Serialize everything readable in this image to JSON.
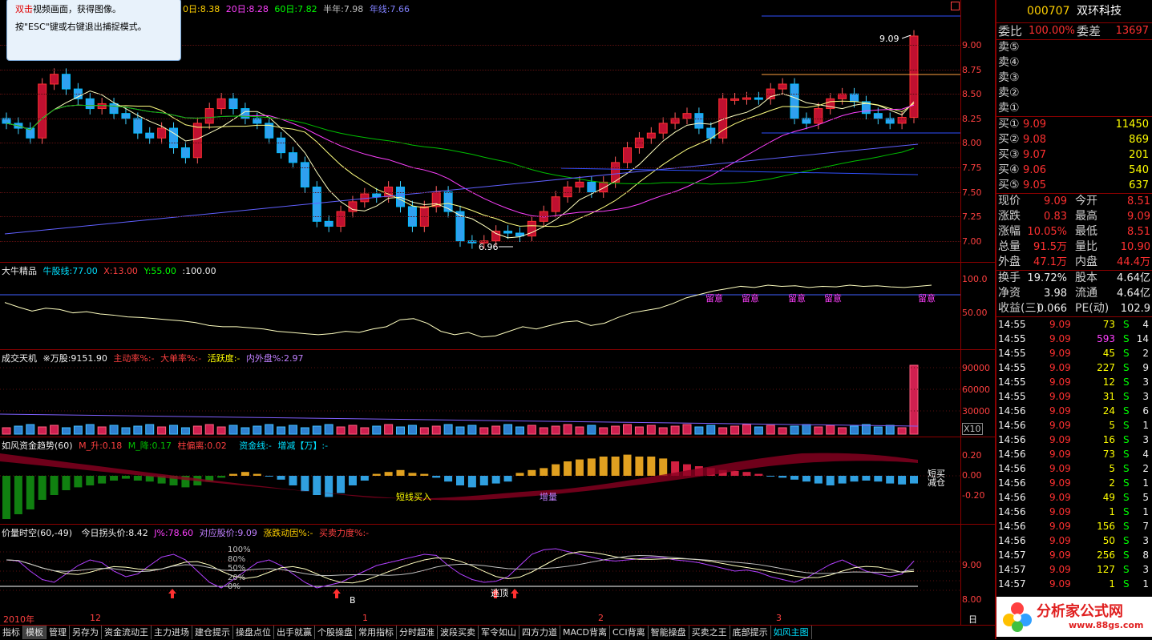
{
  "tooltip": {
    "line1_red": "双击",
    "line1_rest": "视频画面，获得图像。",
    "line2": "按\"ESC\"键或右键退出捕捉模式。"
  },
  "main_title": {
    "ma10": "0日:8.38",
    "ma20_label": "20日:8.28",
    "ma60_label": "60日:7.82",
    "half_year": "半年:7.98",
    "year": "年线:7.66",
    "prefix": "双"
  },
  "price_axis": [
    "9.00",
    "8.75",
    "8.50",
    "8.25",
    "8.00",
    "7.75",
    "7.50",
    "7.25",
    "7.00"
  ],
  "annotations": {
    "high": "9.09",
    "low": "6.96"
  },
  "pane1": {
    "title": "大牛精品",
    "f1": "牛股线:77.00",
    "f2": "X:13.00",
    "f3": "Y:55.00",
    "f4": ":100.00",
    "axis": [
      "100.0",
      "50.00"
    ],
    "marks": [
      "留意",
      "留意",
      "留意",
      "留意",
      "留意"
    ]
  },
  "pane2": {
    "title": "成交天机",
    "f1": "※万股:9151.90",
    "f2": "主动率%:-",
    "f3": "大单率%:-",
    "f4": "活跃度:-",
    "f5": "内外盘%:2.97",
    "axis": [
      "90000",
      "60000",
      "30000"
    ],
    "unit": "X10"
  },
  "pane3": {
    "title": "如风资金趋势(60)",
    "f1": "M_升:0.18",
    "f2": "M_降:0.17",
    "f3": "柱偏离:0.02",
    "f4": "资金线:-",
    "f5": "增减【万】:-",
    "axis": [
      "0.20",
      "0.00",
      "-0.20"
    ],
    "labels": [
      "短线买入",
      "增量"
    ],
    "sidebar": [
      "短买",
      "减仓"
    ]
  },
  "pane4": {
    "title": "价量时空(60,-49)",
    "f1": "今日拐头价:8.42",
    "f2": "J%:78.60",
    "f3": "对应股价:9.09",
    "f4": "涨跌动因%:-",
    "f5": "买卖力度%:-",
    "axis": [
      "9.00",
      "8.00"
    ],
    "levels": [
      "100%",
      "80%",
      "50%",
      "20%",
      "0%"
    ],
    "marks": [
      "B",
      "逃顶"
    ]
  },
  "xaxis": {
    "labels": [
      "2010年",
      "12",
      "1",
      "2",
      "3"
    ],
    "period": "日线"
  },
  "tabs": [
    "指标",
    "模板",
    "管理",
    "另存为",
    "资金流动王",
    "主力进场",
    "建仓提示",
    "操盘点位",
    "出手就赢",
    "个股操盘",
    "常用指标",
    "分时超准",
    "波段买卖",
    "军令如山",
    "四方力道",
    "MACD背离",
    "CCI背离",
    "智能操盘",
    "买卖之王",
    "底部提示",
    "如风主图"
  ],
  "stock": {
    "code": "000707",
    "name": "双环科技"
  },
  "order": {
    "wb_label": "委比",
    "wb": "100.00%",
    "wc_label": "委差",
    "wc": "13697"
  },
  "sell": [
    {
      "label": "卖⑤"
    },
    {
      "label": "卖④"
    },
    {
      "label": "卖③"
    },
    {
      "label": "卖②"
    },
    {
      "label": "卖①"
    }
  ],
  "buy": [
    {
      "label": "买①",
      "price": "9.09",
      "vol": "11450"
    },
    {
      "label": "买②",
      "price": "9.08",
      "vol": "869"
    },
    {
      "label": "买③",
      "price": "9.07",
      "vol": "201"
    },
    {
      "label": "买④",
      "price": "9.06",
      "vol": "540"
    },
    {
      "label": "买⑤",
      "price": "9.05",
      "vol": "637"
    }
  ],
  "quote": [
    {
      "l1": "现价",
      "v1": "9.09",
      "l2": "今开",
      "v2": "8.51"
    },
    {
      "l1": "涨跌",
      "v1": "0.83",
      "l2": "最高",
      "v2": "9.09"
    },
    {
      "l1": "涨幅",
      "v1": "10.05%",
      "l2": "最低",
      "v2": "8.51"
    },
    {
      "l1": "总量",
      "v1": "91.5万",
      "l2": "量比",
      "v2": "10.90"
    },
    {
      "l1": "外盘",
      "v1": "47.1万",
      "l2": "内盘",
      "v2": "44.4万"
    }
  ],
  "extra": [
    {
      "l1": "换手",
      "v1": "19.72%",
      "l2": "股本",
      "v2": "4.64亿"
    },
    {
      "l1": "净资",
      "v1": "3.98",
      "l2": "流通",
      "v2": "4.64亿"
    },
    {
      "l1": "收益(三)",
      "v1": "0.066",
      "l2": "PE(动)",
      "v2": "102.9"
    }
  ],
  "ticks": [
    {
      "t": "14:55",
      "p": "9.09",
      "v": "73",
      "s": "S",
      "n": "4"
    },
    {
      "t": "14:55",
      "p": "9.09",
      "v": "593",
      "s": "S",
      "n": "14"
    },
    {
      "t": "14:55",
      "p": "9.09",
      "v": "45",
      "s": "S",
      "n": "2"
    },
    {
      "t": "14:55",
      "p": "9.09",
      "v": "227",
      "s": "S",
      "n": "9"
    },
    {
      "t": "14:55",
      "p": "9.09",
      "v": "12",
      "s": "S",
      "n": "3"
    },
    {
      "t": "14:55",
      "p": "9.09",
      "v": "31",
      "s": "S",
      "n": "3"
    },
    {
      "t": "14:56",
      "p": "9.09",
      "v": "24",
      "s": "S",
      "n": "6"
    },
    {
      "t": "14:56",
      "p": "9.09",
      "v": "5",
      "s": "S",
      "n": "1"
    },
    {
      "t": "14:56",
      "p": "9.09",
      "v": "16",
      "s": "S",
      "n": "3"
    },
    {
      "t": "14:56",
      "p": "9.09",
      "v": "73",
      "s": "S",
      "n": "4"
    },
    {
      "t": "14:56",
      "p": "9.09",
      "v": "5",
      "s": "S",
      "n": "2"
    },
    {
      "t": "14:56",
      "p": "9.09",
      "v": "2",
      "s": "S",
      "n": "1"
    },
    {
      "t": "14:56",
      "p": "9.09",
      "v": "49",
      "s": "S",
      "n": "5"
    },
    {
      "t": "14:56",
      "p": "9.09",
      "v": "1",
      "s": "S",
      "n": "1"
    },
    {
      "t": "14:56",
      "p": "9.09",
      "v": "156",
      "s": "S",
      "n": "7"
    },
    {
      "t": "14:56",
      "p": "9.09",
      "v": "50",
      "s": "S",
      "n": "3"
    },
    {
      "t": "14:57",
      "p": "9.09",
      "v": "256",
      "s": "S",
      "n": "8"
    },
    {
      "t": "14:57",
      "p": "9.09",
      "v": "127",
      "s": "S",
      "n": "3"
    },
    {
      "t": "14:57",
      "p": "9.09",
      "v": "1",
      "s": "S",
      "n": "1"
    }
  ],
  "watermark": {
    "text": "分析家公式网",
    "url": "www.88gs.com"
  },
  "colors": {
    "up": "#ff3030",
    "down": "#00e0ff",
    "grid": "#8b0000",
    "axis": "#ff4040",
    "title": "#ffd000"
  }
}
